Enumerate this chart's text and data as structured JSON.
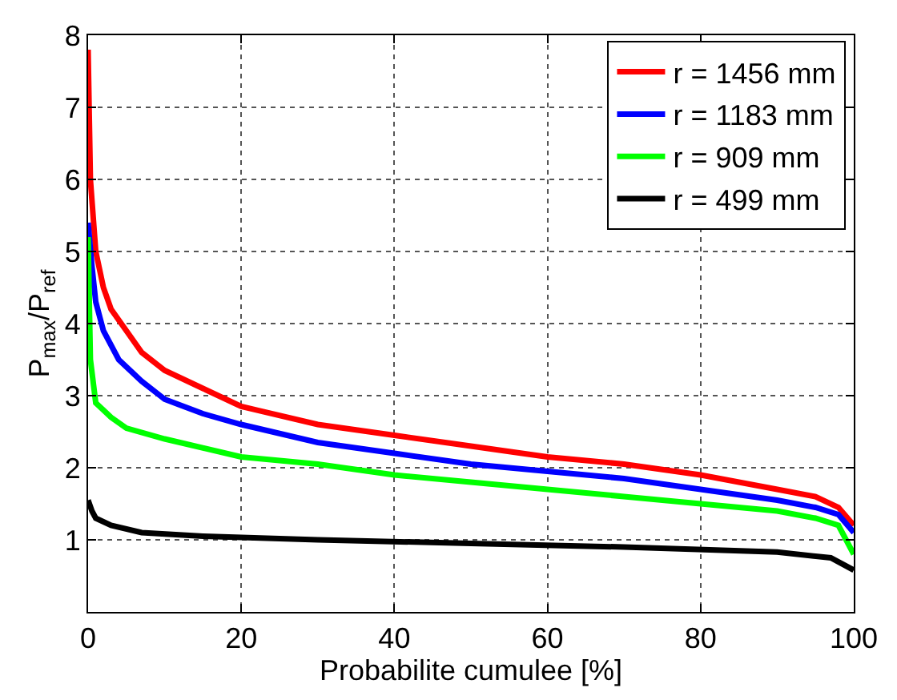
{
  "chart_data": {
    "type": "line",
    "xlabel": "Probabilite cumulee [%]",
    "ylabel": "P$_{max}$/P$_{ref}$",
    "xlim": [
      0,
      100
    ],
    "xticks": [
      0,
      20,
      40,
      60,
      80,
      100
    ],
    "ylim": [
      0,
      8
    ],
    "yticks": [
      {
        "value": 0,
        "label": null
      },
      1,
      2,
      3,
      4,
      5,
      6,
      7,
      8
    ],
    "grid": true,
    "legend": "top right",
    "line_style": "solid",
    "marker": "none",
    "series": [
      {
        "name": "r = 1456 mm",
        "color": "#ff0000",
        "x": [
          0,
          0.3,
          1,
          2,
          3,
          5,
          7,
          10,
          15,
          20,
          30,
          40,
          50,
          60,
          70,
          80,
          90,
          95,
          98,
          100
        ],
        "values": [
          7.8,
          6,
          5,
          4.5,
          4.2,
          3.9,
          3.6,
          3.35,
          3.1,
          2.85,
          2.6,
          2.45,
          2.3,
          2.15,
          2.05,
          1.9,
          1.7,
          1.6,
          1.45,
          1.2
        ]
      },
      {
        "name": "r = 1183 mm",
        "color": "#0000ff",
        "x": [
          0,
          0.5,
          1,
          2,
          4,
          7,
          10,
          15,
          20,
          30,
          40,
          50,
          60,
          70,
          80,
          90,
          95,
          98,
          100
        ],
        "values": [
          5.4,
          4.8,
          4.3,
          3.9,
          3.5,
          3.2,
          2.95,
          2.75,
          2.6,
          2.35,
          2.2,
          2.05,
          1.95,
          1.85,
          1.7,
          1.55,
          1.45,
          1.35,
          1.1
        ]
      },
      {
        "name": "r = 909 mm",
        "color": "#00ff00",
        "x": [
          0,
          0.3,
          1,
          3,
          5,
          10,
          20,
          30,
          40,
          50,
          60,
          70,
          80,
          90,
          95,
          98,
          100
        ],
        "values": [
          5.2,
          3.5,
          2.9,
          2.7,
          2.55,
          2.4,
          2.15,
          2.05,
          1.9,
          1.8,
          1.7,
          1.6,
          1.5,
          1.4,
          1.3,
          1.2,
          0.8
        ]
      },
      {
        "name": "r = 499 mm",
        "color": "#000000",
        "x": [
          0,
          0.5,
          1,
          3,
          7,
          15,
          30,
          50,
          70,
          90,
          97,
          100
        ],
        "values": [
          1.55,
          1.4,
          1.3,
          1.2,
          1.1,
          1.05,
          1.0,
          0.95,
          0.9,
          0.83,
          0.75,
          0.58
        ]
      }
    ]
  }
}
